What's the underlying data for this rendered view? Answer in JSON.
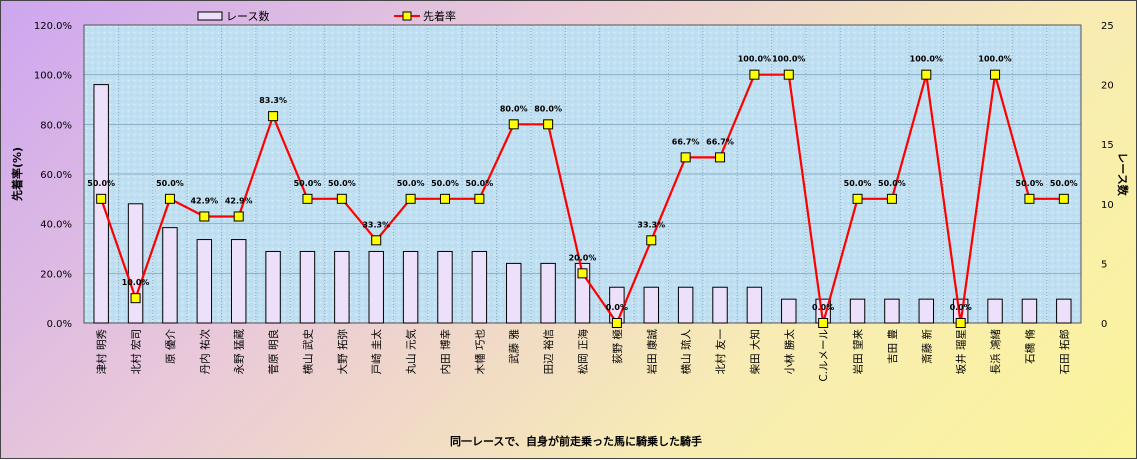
{
  "chart_data": {
    "type": "bar+line",
    "xlabel": "同一レースで、自身が前走乗った馬に騎乗した騎手",
    "ylabel_left": "先着率(%)",
    "ylabel_right": "レース数",
    "legend_position": "top",
    "ylim_left": [
      0,
      120
    ],
    "ylim_right": [
      0,
      25
    ],
    "left_ticks": [
      "0.0%",
      "20.0%",
      "40.0%",
      "60.0%",
      "80.0%",
      "100.0%",
      "120.0%"
    ],
    "right_ticks": [
      "0",
      "5",
      "10",
      "15",
      "20",
      "25"
    ],
    "categories": [
      "津村 明秀",
      "北村 宏司",
      "原 優介",
      "丹内 祐次",
      "永野 猛蔵",
      "菅原 明良",
      "横山 武史",
      "大野 拓弥",
      "戸崎 圭太",
      "丸山 元気",
      "内田 博幸",
      "木幡 巧也",
      "武藤 雅",
      "田辺 裕信",
      "松岡 正海",
      "荻野 極",
      "岩田 康誠",
      "横山 琉人",
      "北村 友一",
      "柴田 大知",
      "小林 勝太",
      "C.ルメール",
      "岩田 望来",
      "吉田 豊",
      "斎藤 新",
      "坂井 瑠星",
      "長浜 鴻緒",
      "石橋 脩",
      "石田 拓郎"
    ],
    "series": [
      {
        "name": "レース数",
        "type": "bar",
        "axis": "right",
        "color": "#e8d8f8",
        "values": [
          20,
          10,
          8,
          7,
          7,
          6,
          6,
          6,
          6,
          6,
          6,
          6,
          5,
          5,
          5,
          3,
          3,
          3,
          3,
          3,
          2,
          2,
          2,
          2,
          2,
          2,
          2,
          2,
          2
        ]
      },
      {
        "name": "先着率",
        "type": "line",
        "axis": "left",
        "color": "#ff0000",
        "marker_color": "#ffff00",
        "values": [
          50.0,
          10.0,
          50.0,
          42.9,
          42.9,
          83.3,
          50.0,
          50.0,
          33.3,
          50.0,
          50.0,
          50.0,
          80.0,
          80.0,
          20.0,
          0.0,
          33.3,
          66.7,
          66.7,
          100.0,
          100.0,
          0.0,
          50.0,
          50.0,
          100.0,
          0.0,
          100.0,
          50.0,
          50.0
        ],
        "labels": [
          "50.0%",
          "10.0%",
          "50.0%",
          "42.9%",
          "42.9%",
          "83.3%",
          "50.0%",
          "50.0%",
          "33.3%",
          "50.0%",
          "50.0%",
          "50.0%",
          "80.0%",
          "80.0%",
          "20.0%",
          "0.0%",
          "33.3%",
          "66.7%",
          "66.7%",
          "100.0%",
          "100.0%",
          "0.0%",
          "50.0%",
          "50.0%",
          "100.0%",
          "0.0%",
          "100.0%",
          "50.0%",
          "50.0%"
        ]
      }
    ],
    "colors": {
      "plot_bg": "#bfe0f2",
      "grid": "#8aaec4",
      "bar_fill": "#ede0fb",
      "bar_stroke": "#000000",
      "line": "#ff0000",
      "marker": "#ffff00"
    }
  }
}
